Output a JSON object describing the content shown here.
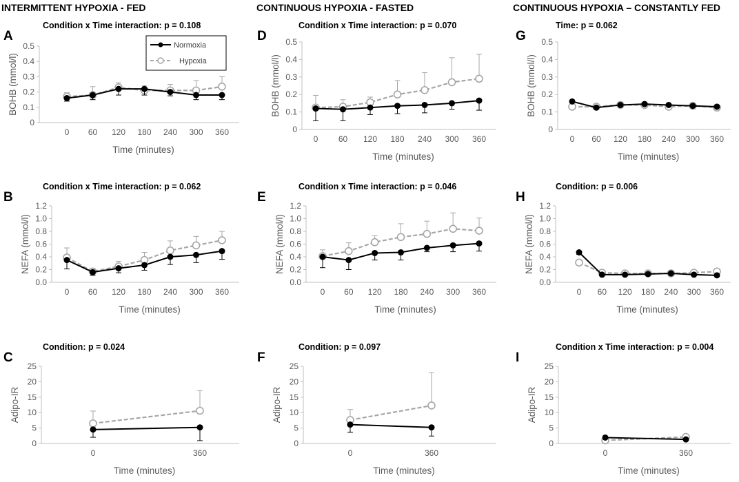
{
  "column_headers": [
    "INTERMITTENT HYPOXIA - FED",
    "CONTINUOUS HYPOXIA - FASTED",
    "CONTINUOUS HYPOXIA – CONSTANTLY FED"
  ],
  "legend": {
    "normoxia": "Normoxia",
    "hypoxia": "Hypoxia"
  },
  "colors": {
    "normoxia": "#000000",
    "hypoxia": "#a6a6a6",
    "axis": "#bfbfbf",
    "text": "#595959"
  },
  "chart_data": [
    {
      "id": "A",
      "type": "line",
      "title": "Condition x Time interaction: p = 0.108",
      "xlabel": "Time (minutes)",
      "ylabel": "BOHB (mmol/l)",
      "ylim": [
        0,
        0.5
      ],
      "yticks": [
        "0",
        "0.1",
        "0.2",
        "0.3",
        "0.4",
        "0.5"
      ],
      "categories": [
        "0",
        "60",
        "120",
        "180",
        "240",
        "300",
        "360"
      ],
      "series": [
        {
          "name": "Normoxia",
          "values": [
            0.16,
            0.18,
            0.22,
            0.22,
            0.2,
            0.18,
            0.18
          ],
          "err": [
            0.02,
            0.03,
            0.04,
            0.04,
            0.025,
            0.03,
            0.03
          ]
        },
        {
          "name": "Hypoxia",
          "values": [
            0.17,
            0.18,
            0.23,
            0.21,
            0.21,
            0.21,
            0.235
          ],
          "err": [
            0.025,
            0.055,
            0.03,
            0.03,
            0.04,
            0.065,
            0.065
          ]
        }
      ]
    },
    {
      "id": "D",
      "type": "line",
      "title": "Condition x Time interaction: p = 0.070",
      "xlabel": "Time (minutes)",
      "ylabel": "BOHB (mmol/l)",
      "ylim": [
        0,
        0.5
      ],
      "yticks": [
        "0",
        "0.1",
        "0.2",
        "0.3",
        "0.4",
        "0.5"
      ],
      "categories": [
        "0",
        "60",
        "120",
        "180",
        "240",
        "300",
        "360"
      ],
      "series": [
        {
          "name": "Normoxia",
          "values": [
            0.12,
            0.115,
            0.125,
            0.135,
            0.14,
            0.15,
            0.165
          ],
          "err": [
            0.07,
            0.065,
            0.04,
            0.045,
            0.045,
            0.035,
            0.055
          ]
        },
        {
          "name": "Hypoxia",
          "values": [
            0.125,
            0.13,
            0.155,
            0.2,
            0.225,
            0.27,
            0.29
          ],
          "err": [
            0.07,
            0.04,
            0.03,
            0.08,
            0.1,
            0.14,
            0.14
          ]
        }
      ]
    },
    {
      "id": "G",
      "type": "line",
      "title": "Time: p = 0.062",
      "xlabel": "Time (minutes)",
      "ylabel": "BOHB (mmol/l)",
      "ylim": [
        0,
        0.5
      ],
      "yticks": [
        "0",
        "0.1",
        "0.2",
        "0.3",
        "0.4",
        "0.5"
      ],
      "categories": [
        "0",
        "60",
        "120",
        "180",
        "240",
        "300",
        "360"
      ],
      "series": [
        {
          "name": "Normoxia",
          "values": [
            0.16,
            0.125,
            0.14,
            0.145,
            0.14,
            0.135,
            0.13
          ],
          "err": [
            0.005,
            0.005,
            0.005,
            0.005,
            0.005,
            0.005,
            0.005
          ]
        },
        {
          "name": "Hypoxia",
          "values": [
            0.13,
            0.13,
            0.14,
            0.14,
            0.13,
            0.135,
            0.125
          ],
          "err": [
            0.005,
            0.005,
            0.005,
            0.005,
            0.005,
            0.005,
            0.005
          ]
        }
      ]
    },
    {
      "id": "B",
      "type": "line",
      "title": "Condition x Time interaction: p = 0.062",
      "xlabel": "Time (minutes)",
      "ylabel": "NEFA (mmol/l)",
      "ylim": [
        0,
        1.2
      ],
      "yticks": [
        "0.0",
        "0.2",
        "0.4",
        "0.6",
        "0.8",
        "1.0",
        "1.2"
      ],
      "categories": [
        "0",
        "60",
        "120",
        "180",
        "240",
        "300",
        "360"
      ],
      "series": [
        {
          "name": "Normoxia",
          "values": [
            0.35,
            0.16,
            0.22,
            0.27,
            0.4,
            0.43,
            0.49
          ],
          "err": [
            0.14,
            0.05,
            0.07,
            0.08,
            0.12,
            0.12,
            0.13
          ]
        },
        {
          "name": "Hypoxia",
          "values": [
            0.39,
            0.17,
            0.25,
            0.35,
            0.5,
            0.58,
            0.66
          ],
          "err": [
            0.15,
            0.05,
            0.08,
            0.12,
            0.15,
            0.14,
            0.14
          ]
        }
      ]
    },
    {
      "id": "E",
      "type": "line",
      "title": "Condition x Time interaction: p = 0.046",
      "xlabel": "Time (minutes)",
      "ylabel": "NEFA (mmol/l)",
      "ylim": [
        0,
        1.2
      ],
      "yticks": [
        "0.0",
        "0.2",
        "0.4",
        "0.6",
        "0.8",
        "1.0",
        "1.2"
      ],
      "categories": [
        "0",
        "60",
        "120",
        "180",
        "240",
        "300",
        "360"
      ],
      "series": [
        {
          "name": "Normoxia",
          "values": [
            0.4,
            0.35,
            0.46,
            0.47,
            0.54,
            0.58,
            0.61
          ],
          "err": [
            0.17,
            0.15,
            0.11,
            0.12,
            0.06,
            0.1,
            0.12
          ]
        },
        {
          "name": "Hypoxia",
          "values": [
            0.41,
            0.49,
            0.63,
            0.71,
            0.76,
            0.84,
            0.81
          ],
          "err": [
            0.1,
            0.13,
            0.1,
            0.21,
            0.2,
            0.25,
            0.2
          ]
        }
      ]
    },
    {
      "id": "H",
      "type": "line",
      "title": "Condition: p = 0.006",
      "xlabel": "Time (minutes)",
      "ylabel": "NEFA (mmol/l)",
      "ylim": [
        0,
        1.2
      ],
      "yticks": [
        "0.0",
        "0.2",
        "0.4",
        "0.6",
        "0.8",
        "1.0",
        "1.2"
      ],
      "categories": [
        "0",
        "60",
        "120",
        "180",
        "240",
        "300",
        "360"
      ],
      "series": [
        {
          "name": "Normoxia",
          "values": [
            0.47,
            0.12,
            0.12,
            0.13,
            0.14,
            0.12,
            0.11
          ],
          "err": [
            0.03,
            0.02,
            0.02,
            0.02,
            0.02,
            0.02,
            0.02
          ]
        },
        {
          "name": "Hypoxia",
          "values": [
            0.31,
            0.15,
            0.14,
            0.14,
            0.14,
            0.15,
            0.17
          ],
          "err": [
            0.03,
            0.02,
            0.02,
            0.02,
            0.02,
            0.02,
            0.02
          ]
        }
      ]
    },
    {
      "id": "C",
      "type": "line",
      "title": "Condition: p = 0.024",
      "xlabel": "Time (minutes)",
      "ylabel": "Adipo-IR",
      "ylim": [
        0,
        25
      ],
      "yticks": [
        "0",
        "5",
        "10",
        "15",
        "20",
        "25"
      ],
      "categories": [
        "0",
        "360"
      ],
      "series": [
        {
          "name": "Normoxia",
          "values": [
            4.5,
            5.2
          ],
          "err": [
            2.5,
            4.3
          ]
        },
        {
          "name": "Hypoxia",
          "values": [
            6.5,
            10.6
          ],
          "err": [
            4.0,
            6.5
          ]
        }
      ]
    },
    {
      "id": "F",
      "type": "line",
      "title": "Condition: p = 0.097",
      "xlabel": "Time (minutes)",
      "ylabel": "Adipo-IR",
      "ylim": [
        0,
        25
      ],
      "yticks": [
        "0",
        "5",
        "10",
        "15",
        "20",
        "25"
      ],
      "categories": [
        "0",
        "360"
      ],
      "series": [
        {
          "name": "Normoxia",
          "values": [
            6.1,
            5.2
          ],
          "err": [
            2.5,
            2.8
          ]
        },
        {
          "name": "Hypoxia",
          "values": [
            7.6,
            12.3
          ],
          "err": [
            3.4,
            10.6
          ]
        }
      ]
    },
    {
      "id": "I",
      "type": "line",
      "title": "Condition x Time interaction: p = 0.004",
      "xlabel": "Time (minutes)",
      "ylabel": "Adipo-IR",
      "ylim": [
        0,
        25
      ],
      "yticks": [
        "0",
        "5",
        "10",
        "15",
        "20",
        "25"
      ],
      "categories": [
        "0",
        "360"
      ],
      "series": [
        {
          "name": "Normoxia",
          "values": [
            1.9,
            1.3
          ],
          "err": [
            0.3,
            0.3
          ]
        },
        {
          "name": "Hypoxia",
          "values": [
            1.0,
            2.1
          ],
          "err": [
            0.3,
            0.3
          ]
        }
      ]
    }
  ]
}
